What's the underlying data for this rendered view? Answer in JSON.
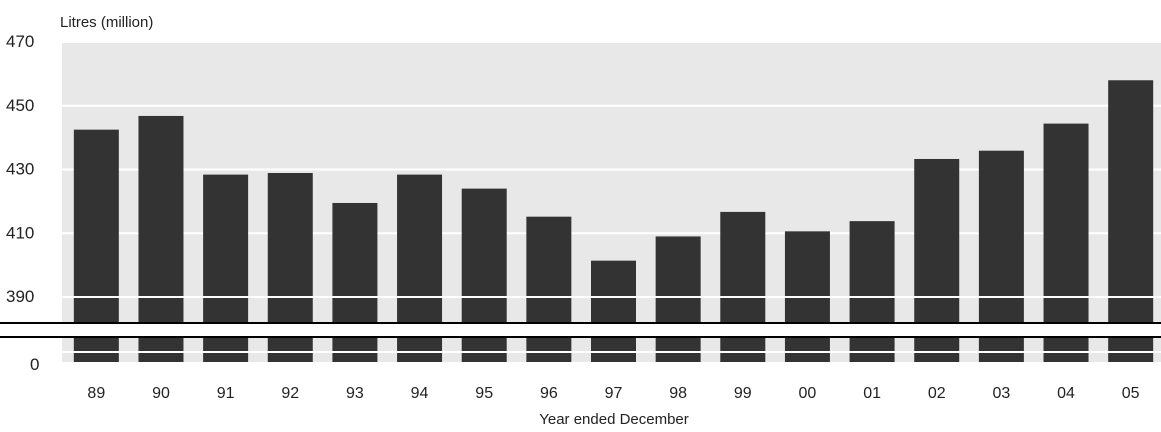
{
  "chart_data": {
    "type": "bar",
    "title": "",
    "ylabel": "Litres (million)",
    "xlabel": "Year ended December",
    "categories": [
      "89",
      "90",
      "91",
      "92",
      "93",
      "94",
      "95",
      "96",
      "97",
      "98",
      "99",
      "00",
      "01",
      "02",
      "03",
      "04",
      "05"
    ],
    "values": [
      442.5,
      446.8,
      428.4,
      428.9,
      419.5,
      428.4,
      424.0,
      415.2,
      401.4,
      409.0,
      416.7,
      410.6,
      413.8,
      433.3,
      435.9,
      444.4,
      458.0
    ],
    "ylim": [
      380,
      470
    ],
    "yticks": [
      "470",
      "450",
      "430",
      "410",
      "390"
    ],
    "broken_axis_label": "0",
    "grid": true,
    "colors": {
      "bar": "#333333",
      "plot_background": "#e8e8e8",
      "gridline": "#ffffff"
    }
  }
}
